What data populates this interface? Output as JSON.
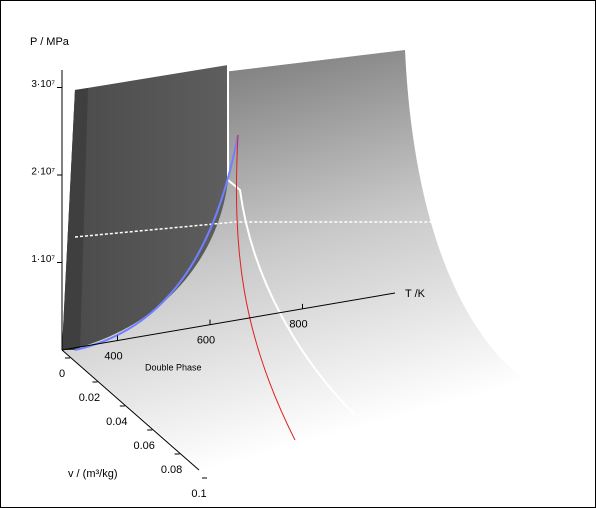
{
  "chart_data": {
    "type": "surface3d",
    "z_label": "P / MPa",
    "x_label": "T /K",
    "y_label": "v / (m³/kg)",
    "annotation": "Double Phase",
    "zlim": [
      0,
      32000000
    ],
    "zticks": [
      {
        "value": 10000000,
        "label": "1·10⁷"
      },
      {
        "value": 20000000,
        "label": "2·10⁷"
      },
      {
        "value": 30000000,
        "label": "3·10⁷"
      }
    ],
    "xlim": [
      280,
      1000
    ],
    "xticks": [
      400,
      600,
      800
    ],
    "ylim": [
      0,
      0.1
    ],
    "yticks": [
      0,
      0.02,
      0.04,
      0.06,
      0.08,
      0.1
    ]
  }
}
